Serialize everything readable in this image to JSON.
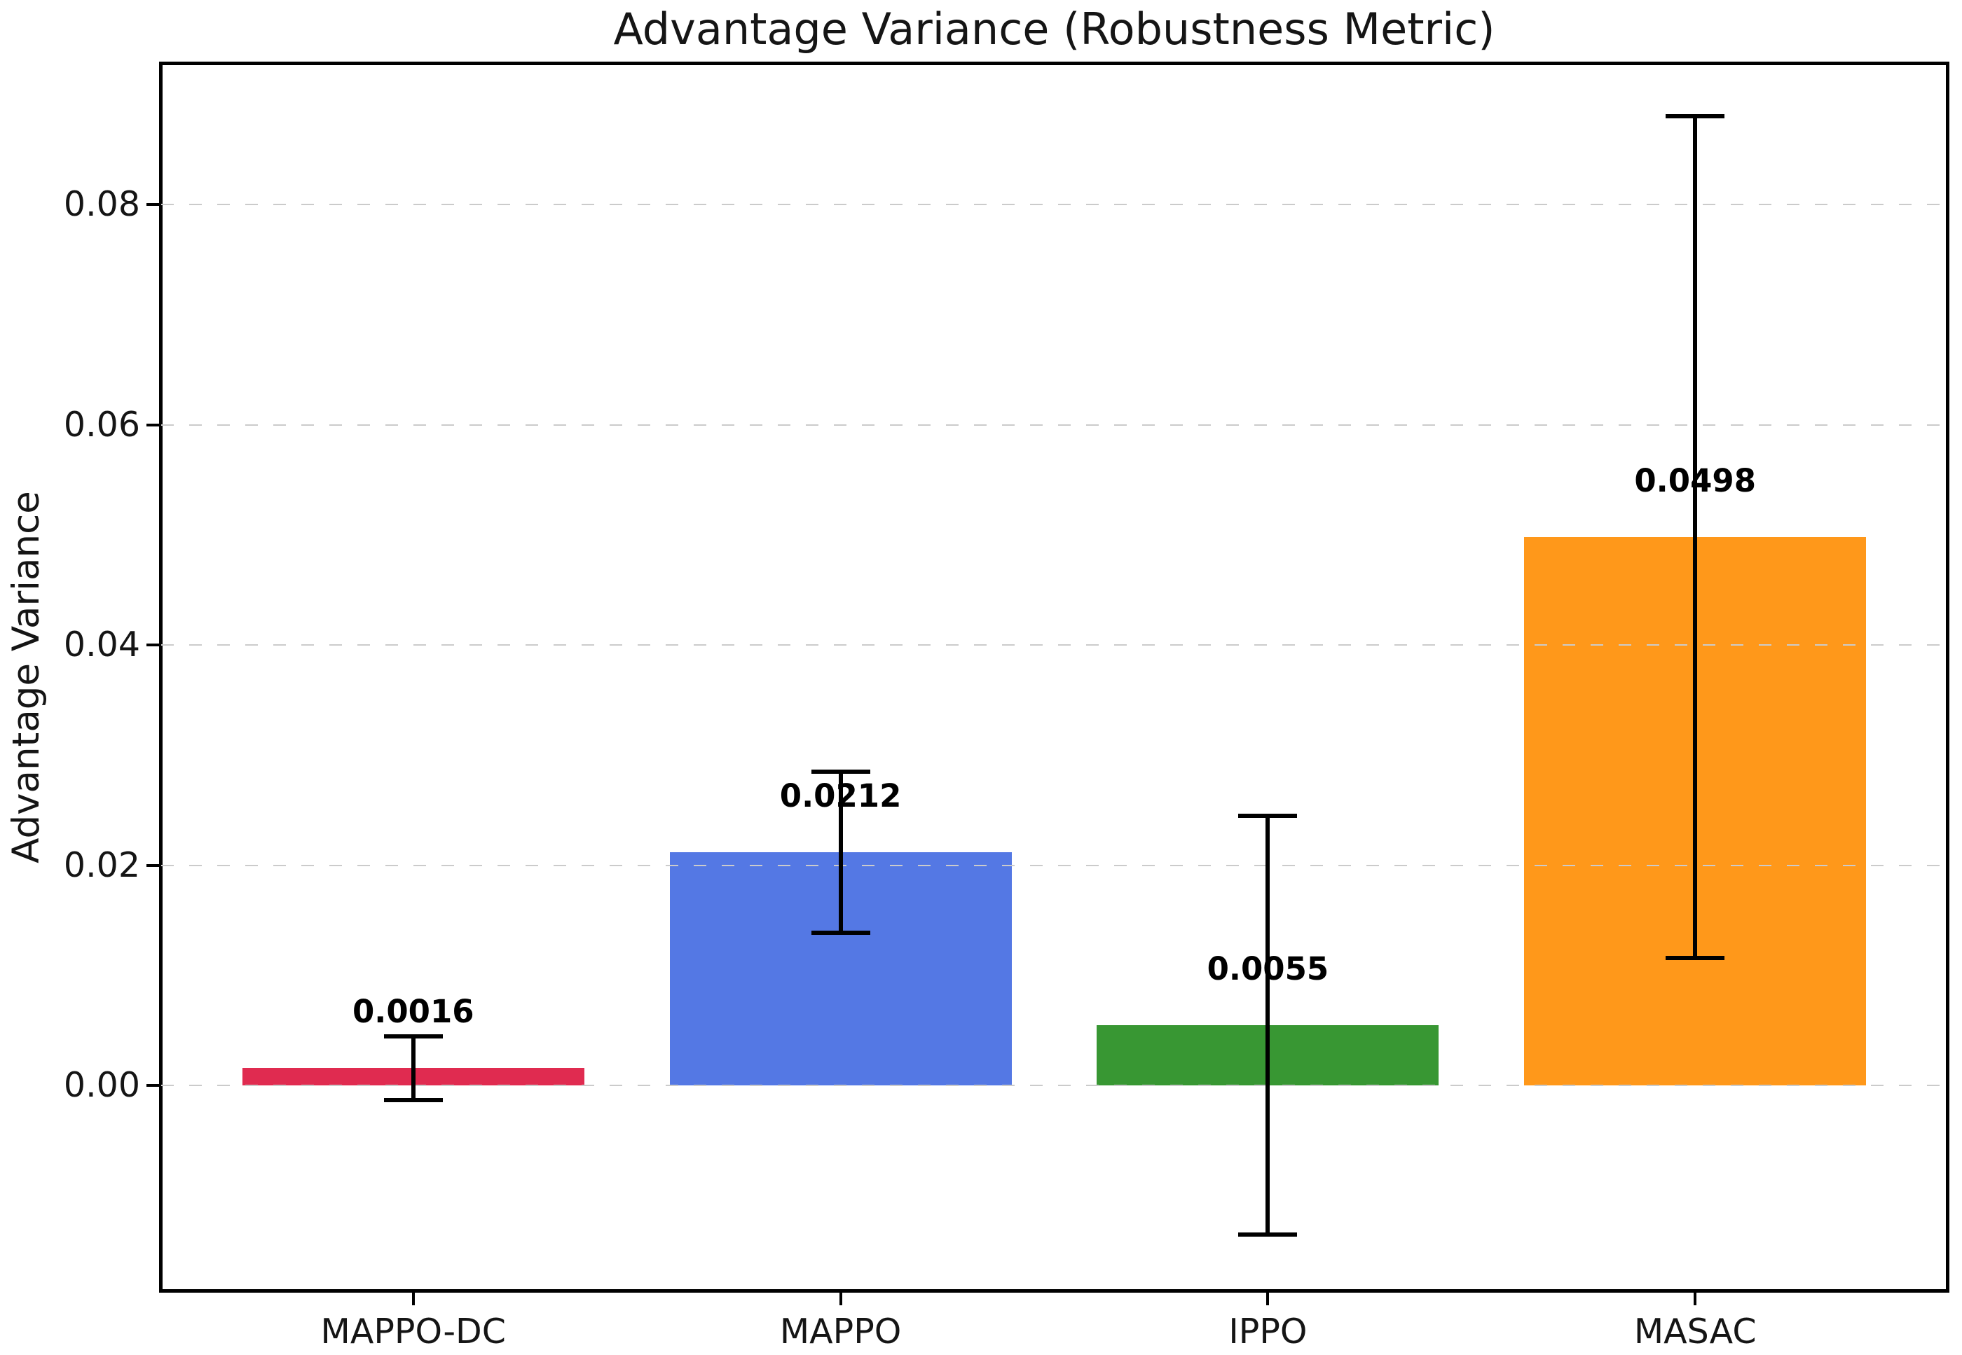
{
  "chart_data": {
    "type": "bar",
    "title": "Advantage Variance (Robustness Metric)",
    "ylabel": "Advantage Variance",
    "xlabel": "",
    "categories": [
      "MAPPO-DC",
      "MAPPO",
      "IPPO",
      "MASAC"
    ],
    "values": [
      0.0016,
      0.0212,
      0.0055,
      0.0498
    ],
    "errors": [
      0.0029,
      0.0073,
      0.019,
      0.0382
    ],
    "value_labels": [
      "0.0016",
      "0.0212",
      "0.0055",
      "0.0498"
    ],
    "bar_colors": [
      "#E02B50",
      "#5478E4",
      "#389733",
      "#FF981A"
    ],
    "yticks": [
      0.0,
      0.02,
      0.04,
      0.06,
      0.08
    ],
    "ytick_labels": [
      "0.00",
      "0.02",
      "0.04",
      "0.06",
      "0.08"
    ],
    "ylim": [
      -0.0186,
      0.0928
    ],
    "bar_width_fraction": 0.8,
    "grid": "horizontal-dashed",
    "grid_color": "#cbcbcb",
    "axis_color": "#000000",
    "error_color": "#000000",
    "background": "#ffffff",
    "legend": "none"
  }
}
